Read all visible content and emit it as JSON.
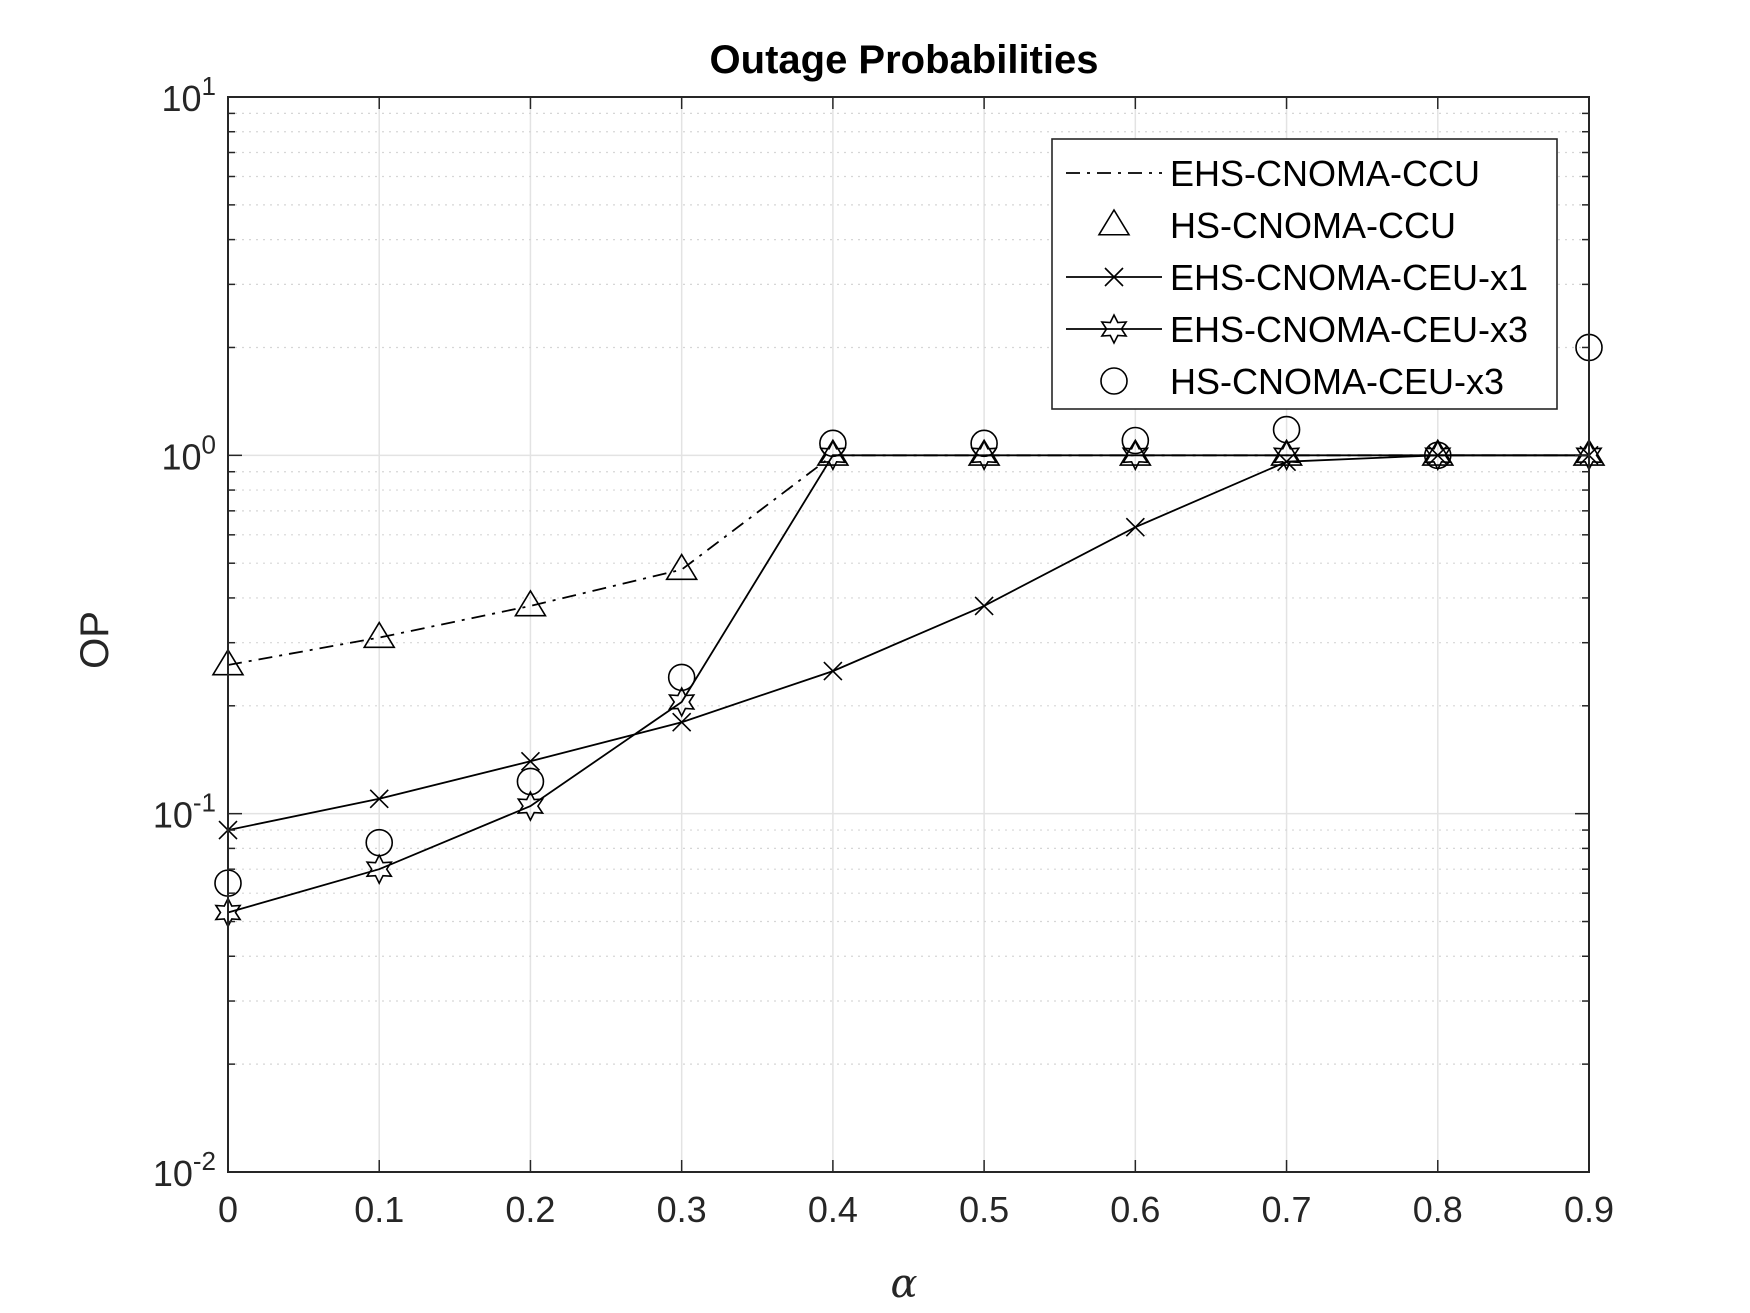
{
  "chart_data": {
    "type": "line",
    "title": "Outage Probabilities",
    "xlabel": "α",
    "ylabel": "OP",
    "xlim": [
      0,
      0.9
    ],
    "ylim": [
      0.01,
      10
    ],
    "yscale": "log",
    "grid": true,
    "legend_position": "top-right",
    "x": [
      0,
      0.1,
      0.2,
      0.3,
      0.4,
      0.5,
      0.6,
      0.7,
      0.8,
      0.9
    ],
    "x_tick_labels": [
      "0",
      "0.1",
      "0.2",
      "0.3",
      "0.4",
      "0.5",
      "0.6",
      "0.7",
      "0.8",
      "0.9"
    ],
    "y_ticks": [
      {
        "value": 0.01,
        "base": "10",
        "exp": "-2"
      },
      {
        "value": 0.1,
        "base": "10",
        "exp": "-1"
      },
      {
        "value": 1,
        "base": "10",
        "exp": "0"
      },
      {
        "value": 10,
        "base": "10",
        "exp": "1"
      }
    ],
    "series": [
      {
        "name": "EHS-CNOMA-CCU",
        "line": "dashdot",
        "marker": "none",
        "values": [
          0.26,
          0.31,
          0.38,
          0.48,
          1.0,
          1.0,
          1.0,
          1.0,
          1.0,
          1.0
        ]
      },
      {
        "name": "HS-CNOMA-CCU",
        "line": "none",
        "marker": "triangle",
        "values": [
          0.26,
          0.31,
          0.38,
          0.48,
          1.0,
          1.0,
          1.0,
          1.0,
          1.0,
          1.0
        ]
      },
      {
        "name": "EHS-CNOMA-CEU-x1",
        "line": "solid",
        "marker": "x",
        "values": [
          0.09,
          0.11,
          0.14,
          0.18,
          0.25,
          0.38,
          0.63,
          0.96,
          1.0,
          1.0
        ]
      },
      {
        "name": "EHS-CNOMA-CEU-x3",
        "line": "solid",
        "marker": "hexagram",
        "values": [
          0.053,
          0.07,
          0.105,
          0.205,
          1.0,
          1.0,
          1.0,
          1.0,
          1.0,
          1.0
        ]
      },
      {
        "name": "HS-CNOMA-CEU-x3",
        "line": "none",
        "marker": "circle",
        "values": [
          0.064,
          0.083,
          0.123,
          0.24,
          1.08,
          1.08,
          1.1,
          1.18,
          1.0,
          2.0
        ]
      }
    ]
  }
}
